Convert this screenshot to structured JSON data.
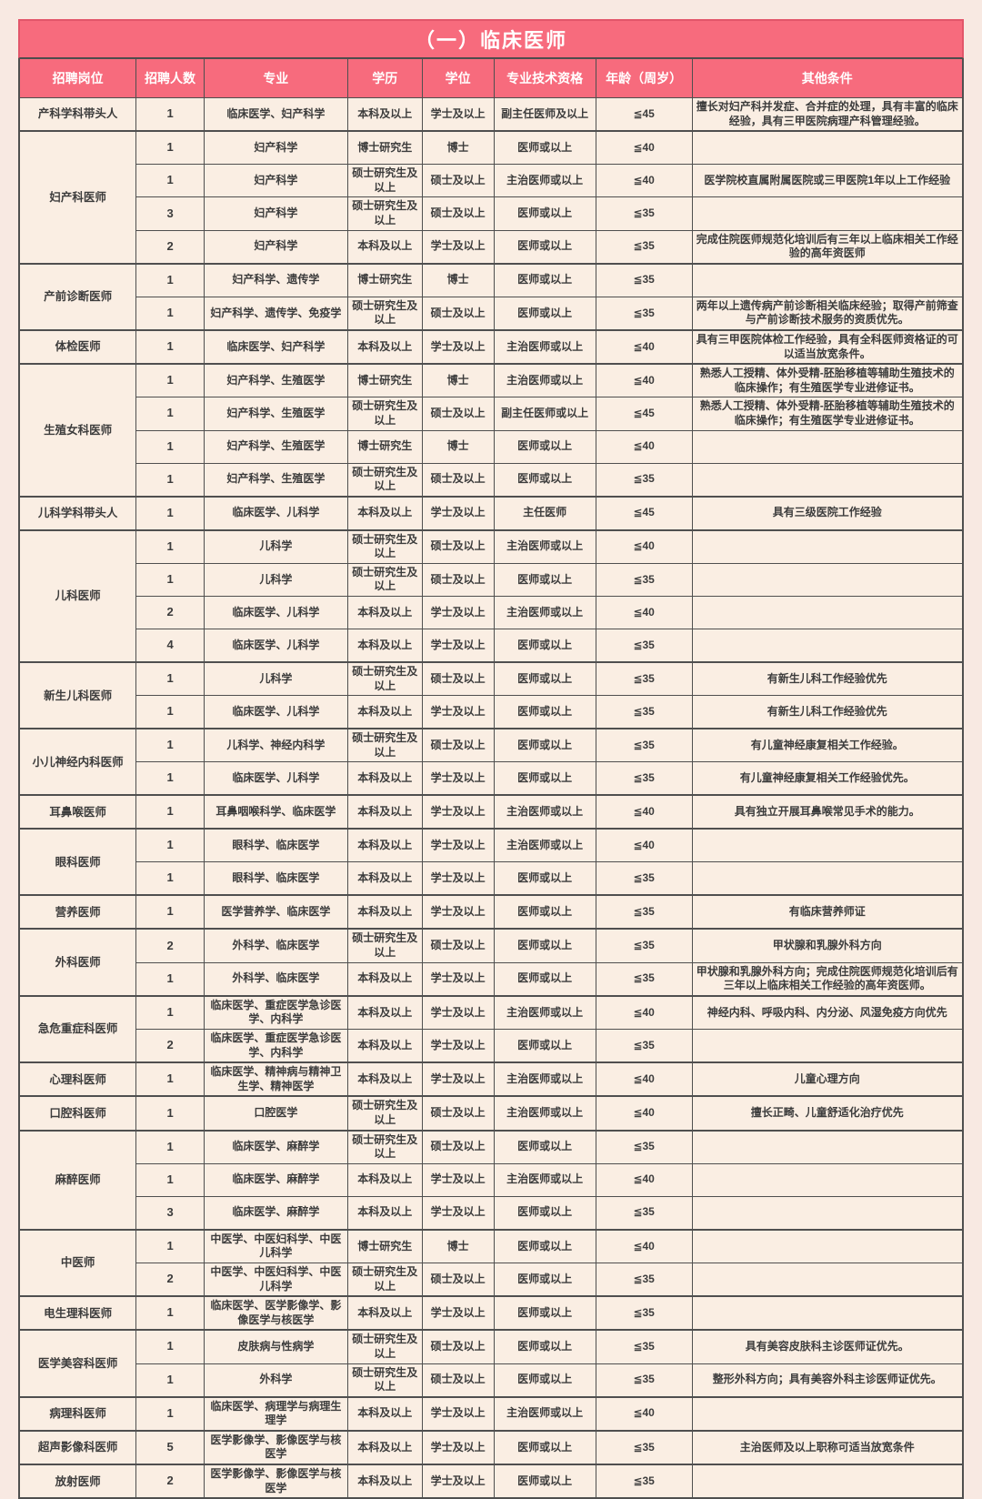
{
  "title": "（一）临床医师",
  "columns": [
    "招聘岗位",
    "招聘人数",
    "专业",
    "学历",
    "学位",
    "专业技术资格",
    "年龄（周岁）",
    "其他条件"
  ],
  "colors": {
    "header_bg": "#f76b7d",
    "header_text": "#ffffff",
    "cell_bg": "#faeee3",
    "page_bg": "#f8e9e2",
    "border": "#4f4f4f",
    "text": "#3c3c3c"
  },
  "groups": [
    {
      "position": "产科学科带头人",
      "rows": [
        {
          "count": "1",
          "major": "临床医学、妇产科学",
          "education": "本科及以上",
          "degree": "学士及以上",
          "qualification": "副主任医师及以上",
          "age": "≦45",
          "other": "擅长对妇产科并发症、合并症的处理，具有丰富的临床经验，具有三甲医院病理产科管理经验。"
        }
      ]
    },
    {
      "position": "妇产科医师",
      "rows": [
        {
          "count": "1",
          "major": "妇产科学",
          "education": "博士研究生",
          "degree": "博士",
          "qualification": "医师或以上",
          "age": "≦40",
          "other": ""
        },
        {
          "count": "1",
          "major": "妇产科学",
          "education": "硕士研究生及以上",
          "degree": "硕士及以上",
          "qualification": "主治医师或以上",
          "age": "≦40",
          "other": "医学院校直属附属医院或三甲医院1年以上工作经验"
        },
        {
          "count": "3",
          "major": "妇产科学",
          "education": "硕士研究生及以上",
          "degree": "硕士及以上",
          "qualification": "医师或以上",
          "age": "≦35",
          "other": ""
        },
        {
          "count": "2",
          "major": "妇产科学",
          "education": "本科及以上",
          "degree": "学士及以上",
          "qualification": "医师或以上",
          "age": "≦35",
          "other": "完成住院医师规范化培训后有三年以上临床相关工作经验的高年资医师"
        }
      ]
    },
    {
      "position": "产前诊断医师",
      "rows": [
        {
          "count": "1",
          "major": "妇产科学、遗传学",
          "education": "博士研究生",
          "degree": "博士",
          "qualification": "医师或以上",
          "age": "≦35",
          "other": ""
        },
        {
          "count": "1",
          "major": "妇产科学、遗传学、免疫学",
          "education": "硕士研究生及以上",
          "degree": "硕士及以上",
          "qualification": "医师或以上",
          "age": "≦35",
          "other": "两年以上遗传病产前诊断相关临床经验；取得产前筛查与产前诊断技术服务的资质优先。"
        }
      ]
    },
    {
      "position": "体检医师",
      "rows": [
        {
          "count": "1",
          "major": "临床医学、妇产科学",
          "education": "本科及以上",
          "degree": "学士及以上",
          "qualification": "主治医师或以上",
          "age": "≦40",
          "other": "具有三甲医院体检工作经验，具有全科医师资格证的可以适当放宽条件。"
        }
      ]
    },
    {
      "position": "生殖女科医师",
      "rows": [
        {
          "count": "1",
          "major": "妇产科学、生殖医学",
          "education": "博士研究生",
          "degree": "博士",
          "qualification": "主治医师或以上",
          "age": "≦40",
          "other": "熟悉人工授精、体外受精-胚胎移植等辅助生殖技术的临床操作；有生殖医学专业进修证书。"
        },
        {
          "count": "1",
          "major": "妇产科学、生殖医学",
          "education": "硕士研究生及以上",
          "degree": "硕士及以上",
          "qualification": "副主任医师或以上",
          "age": "≦45",
          "other": "熟悉人工授精、体外受精-胚胎移植等辅助生殖技术的临床操作；有生殖医学专业进修证书。"
        },
        {
          "count": "1",
          "major": "妇产科学、生殖医学",
          "education": "博士研究生",
          "degree": "博士",
          "qualification": "医师或以上",
          "age": "≦40",
          "other": ""
        },
        {
          "count": "1",
          "major": "妇产科学、生殖医学",
          "education": "硕士研究生及以上",
          "degree": "硕士及以上",
          "qualification": "医师或以上",
          "age": "≦35",
          "other": ""
        }
      ]
    },
    {
      "position": "儿科学科带头人",
      "rows": [
        {
          "count": "1",
          "major": "临床医学、儿科学",
          "education": "本科及以上",
          "degree": "学士及以上",
          "qualification": "主任医师",
          "age": "≦45",
          "other": "具有三级医院工作经验"
        }
      ]
    },
    {
      "position": "儿科医师",
      "rows": [
        {
          "count": "1",
          "major": "儿科学",
          "education": "硕士研究生及以上",
          "degree": "硕士及以上",
          "qualification": "主治医师或以上",
          "age": "≦40",
          "other": ""
        },
        {
          "count": "1",
          "major": "儿科学",
          "education": "硕士研究生及以上",
          "degree": "硕士及以上",
          "qualification": "医师或以上",
          "age": "≦35",
          "other": ""
        },
        {
          "count": "2",
          "major": "临床医学、儿科学",
          "education": "本科及以上",
          "degree": "学士及以上",
          "qualification": "主治医师或以上",
          "age": "≦40",
          "other": ""
        },
        {
          "count": "4",
          "major": "临床医学、儿科学",
          "education": "本科及以上",
          "degree": "学士及以上",
          "qualification": "医师或以上",
          "age": "≦35",
          "other": ""
        }
      ]
    },
    {
      "position": "新生儿科医师",
      "rows": [
        {
          "count": "1",
          "major": "儿科学",
          "education": "硕士研究生及以上",
          "degree": "硕士及以上",
          "qualification": "医师或以上",
          "age": "≦35",
          "other": "有新生儿科工作经验优先"
        },
        {
          "count": "1",
          "major": "临床医学、儿科学",
          "education": "本科及以上",
          "degree": "学士及以上",
          "qualification": "医师或以上",
          "age": "≦35",
          "other": "有新生儿科工作经验优先"
        }
      ]
    },
    {
      "position": "小儿神经内科医师",
      "rows": [
        {
          "count": "1",
          "major": "儿科学、神经内科学",
          "education": "硕士研究生及以上",
          "degree": "硕士及以上",
          "qualification": "医师或以上",
          "age": "≦35",
          "other": "有儿童神经康复相关工作经验。"
        },
        {
          "count": "1",
          "major": "临床医学、儿科学",
          "education": "本科及以上",
          "degree": "学士及以上",
          "qualification": "医师或以上",
          "age": "≦35",
          "other": "有儿童神经康复相关工作经验优先。"
        }
      ]
    },
    {
      "position": "耳鼻喉医师",
      "rows": [
        {
          "count": "1",
          "major": "耳鼻咽喉科学、临床医学",
          "education": "本科及以上",
          "degree": "学士及以上",
          "qualification": "主治医师或以上",
          "age": "≦40",
          "other": "具有独立开展耳鼻喉常见手术的能力。"
        }
      ]
    },
    {
      "position": "眼科医师",
      "rows": [
        {
          "count": "1",
          "major": "眼科学、临床医学",
          "education": "本科及以上",
          "degree": "学士及以上",
          "qualification": "主治医师或以上",
          "age": "≦40",
          "other": ""
        },
        {
          "count": "1",
          "major": "眼科学、临床医学",
          "education": "本科及以上",
          "degree": "学士及以上",
          "qualification": "医师或以上",
          "age": "≦35",
          "other": ""
        }
      ]
    },
    {
      "position": "营养医师",
      "rows": [
        {
          "count": "1",
          "major": "医学营养学、临床医学",
          "education": "本科及以上",
          "degree": "学士及以上",
          "qualification": "医师或以上",
          "age": "≦35",
          "other": "有临床营养师证"
        }
      ]
    },
    {
      "position": "外科医师",
      "rows": [
        {
          "count": "2",
          "major": "外科学、临床医学",
          "education": "硕士研究生及以上",
          "degree": "硕士及以上",
          "qualification": "医师或以上",
          "age": "≦35",
          "other": "甲状腺和乳腺外科方向"
        },
        {
          "count": "1",
          "major": "外科学、临床医学",
          "education": "本科及以上",
          "degree": "学士及以上",
          "qualification": "医师或以上",
          "age": "≦35",
          "other": "甲状腺和乳腺外科方向；完成住院医师规范化培训后有三年以上临床相关工作经验的高年资医师。"
        }
      ]
    },
    {
      "position": "急危重症科医师",
      "rows": [
        {
          "count": "1",
          "major": "临床医学、重症医学急诊医学、内科学",
          "education": "本科及以上",
          "degree": "学士及以上",
          "qualification": "主治医师或以上",
          "age": "≦40",
          "other": "神经内科、呼吸内科、内分泌、风湿免疫方向优先"
        },
        {
          "count": "2",
          "major": "临床医学、重症医学急诊医学、内科学",
          "education": "本科及以上",
          "degree": "学士及以上",
          "qualification": "医师或以上",
          "age": "≦35",
          "other": ""
        }
      ]
    },
    {
      "position": "心理科医师",
      "rows": [
        {
          "count": "1",
          "major": "临床医学、精神病与精神卫生学、精神医学",
          "education": "本科及以上",
          "degree": "学士及以上",
          "qualification": "主治医师或以上",
          "age": "≦40",
          "other": "儿童心理方向"
        }
      ]
    },
    {
      "position": "口腔科医师",
      "rows": [
        {
          "count": "1",
          "major": "口腔医学",
          "education": "硕士研究生及以上",
          "degree": "硕士及以上",
          "qualification": "主治医师或以上",
          "age": "≦40",
          "other": "擅长正畸、儿童舒适化治疗优先"
        }
      ]
    },
    {
      "position": "麻醉医师",
      "rows": [
        {
          "count": "1",
          "major": "临床医学、麻醉学",
          "education": "硕士研究生及以上",
          "degree": "硕士及以上",
          "qualification": "医师或以上",
          "age": "≦35",
          "other": ""
        },
        {
          "count": "1",
          "major": "临床医学、麻醉学",
          "education": "本科及以上",
          "degree": "学士及以上",
          "qualification": "主治医师或以上",
          "age": "≦40",
          "other": ""
        },
        {
          "count": "3",
          "major": "临床医学、麻醉学",
          "education": "本科及以上",
          "degree": "学士及以上",
          "qualification": "医师或以上",
          "age": "≦35",
          "other": ""
        }
      ]
    },
    {
      "position": "中医师",
      "rows": [
        {
          "count": "1",
          "major": "中医学、中医妇科学、中医儿科学",
          "education": "博士研究生",
          "degree": "博士",
          "qualification": "医师或以上",
          "age": "≦40",
          "other": ""
        },
        {
          "count": "2",
          "major": "中医学、中医妇科学、中医儿科学",
          "education": "硕士研究生及以上",
          "degree": "硕士及以上",
          "qualification": "医师或以上",
          "age": "≦35",
          "other": ""
        }
      ]
    },
    {
      "position": "电生理科医师",
      "rows": [
        {
          "count": "1",
          "major": "临床医学、医学影像学、影像医学与核医学",
          "education": "本科及以上",
          "degree": "学士及以上",
          "qualification": "医师或以上",
          "age": "≦35",
          "other": ""
        }
      ]
    },
    {
      "position": "医学美容科医师",
      "rows": [
        {
          "count": "1",
          "major": "皮肤病与性病学",
          "education": "硕士研究生及以上",
          "degree": "硕士及以上",
          "qualification": "医师或以上",
          "age": "≦35",
          "other": "具有美容皮肤科主诊医师证优先。"
        },
        {
          "count": "1",
          "major": "外科学",
          "education": "硕士研究生及以上",
          "degree": "硕士及以上",
          "qualification": "医师或以上",
          "age": "≦35",
          "other": "整形外科方向；具有美容外科主诊医师证优先。"
        }
      ]
    },
    {
      "position": "病理科医师",
      "rows": [
        {
          "count": "1",
          "major": "临床医学、病理学与病理生理学",
          "education": "本科及以上",
          "degree": "学士及以上",
          "qualification": "主治医师或以上",
          "age": "≦40",
          "other": ""
        }
      ]
    },
    {
      "position": "超声影像科医师",
      "rows": [
        {
          "count": "5",
          "major": "医学影像学、影像医学与核医学",
          "education": "本科及以上",
          "degree": "学士及以上",
          "qualification": "医师或以上",
          "age": "≦35",
          "other": "主治医师及以上职称可适当放宽条件"
        }
      ]
    },
    {
      "position": "放射医师",
      "rows": [
        {
          "count": "2",
          "major": "医学影像学、影像医学与核医学",
          "education": "本科及以上",
          "degree": "学士及以上",
          "qualification": "医师或以上",
          "age": "≦35",
          "other": ""
        }
      ]
    }
  ]
}
